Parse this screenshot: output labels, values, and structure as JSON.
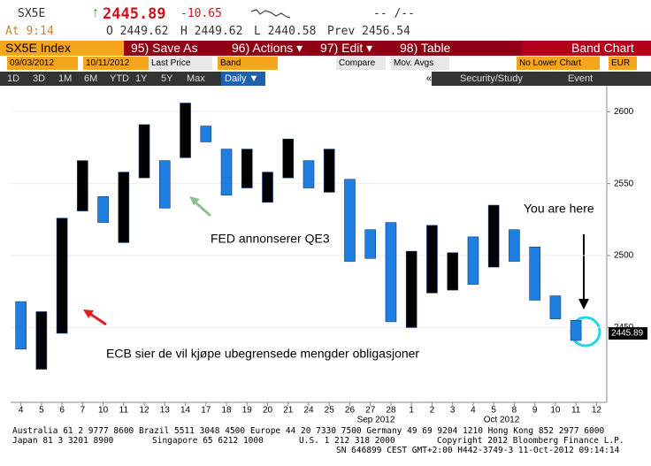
{
  "header": {
    "ticker": "SX5E",
    "last": "2445.89",
    "change": "-10.65",
    "time_pair": "-- /--",
    "at": "At 9:14",
    "open": "O 2449.62",
    "high": "H 2449.62",
    "low": "L 2440.58",
    "prev": "Prev 2456.54"
  },
  "menu": {
    "security": "SX5E Index",
    "save": "95) Save As",
    "actions": "96) Actions ▾",
    "edit": "97) Edit ▾",
    "table": "98) Table",
    "view": "Band Chart"
  },
  "settings": {
    "start": "09/03/2012",
    "end": "10/11/2012",
    "field": "Last Price",
    "style": "Band",
    "compare": "Compare",
    "averages": "Mov. Avgs",
    "lower": "No Lower Chart",
    "currency": "EUR"
  },
  "toolbar": {
    "periods": [
      "1D",
      "3D",
      "1M",
      "6M",
      "YTD",
      "1Y",
      "5Y",
      "Max"
    ],
    "frequency": "Daily ▼",
    "collapse": "«",
    "study": "Security/Study",
    "event": "Event"
  },
  "footer": {
    "line1": "Australia 61 2 9777 8600 Brazil 5511 3048 4500 Europe 44 20 7330 7500 Germany 49 69 9204 1210 Hong Kong 852 2977 6000",
    "japan": "Japan 81 3 3201 8900",
    "singapore": "Singapore 65 6212 1000",
    "us": "U.S. 1 212 318 2000",
    "copyright": "Copyright 2012 Bloomberg Finance L.P.",
    "line3": "SN 646899 CEST  GMT+2:00 H442-3749-3 11-Oct-2012 09:14:14"
  },
  "chart_data": {
    "type": "band",
    "categories": [
      "4",
      "5",
      "6",
      "7",
      "10",
      "11",
      "12",
      "13",
      "14",
      "17",
      "18",
      "19",
      "20",
      "21",
      "24",
      "25",
      "26",
      "27",
      "28",
      "1",
      "2",
      "3",
      "4",
      "5",
      "8",
      "9",
      "10",
      "11",
      "12"
    ],
    "high": [
      2468,
      2461,
      2526,
      2566,
      2541,
      2558,
      2591,
      2566,
      2606,
      2590,
      2574,
      2574,
      2558,
      2581,
      2566,
      2574,
      2553,
      2518,
      2523,
      2503,
      2521,
      2502,
      2513,
      2535,
      2518,
      2506,
      2472,
      2455,
      null
    ],
    "low": [
      2435,
      2421,
      2446,
      2531,
      2523,
      2509,
      2554,
      2533,
      2568,
      2579,
      2542,
      2547,
      2537,
      2554,
      2547,
      2544,
      2496,
      2498,
      2454,
      2450,
      2474,
      2476,
      2480,
      2492,
      2496,
      2469,
      2456,
      2441,
      null
    ],
    "colors": [
      "#1e7fe0",
      "#000000",
      "#000000",
      "#000000",
      "#1e7fe0",
      "#000000",
      "#000000",
      "#1e7fe0",
      "#000000",
      "#1e7fe0",
      "#1e7fe0",
      "#000000",
      "#000000",
      "#000000",
      "#1e7fe0",
      "#000000",
      "#1e7fe0",
      "#1e7fe0",
      "#1e7fe0",
      "#000000",
      "#000000",
      "#000000",
      "#1e7fe0",
      "#000000",
      "#1e7fe0",
      "#1e7fe0",
      "#1e7fe0",
      "#1e7fe0",
      null
    ],
    "ylim": [
      2398,
      2618
    ],
    "yticks": [
      2450,
      2500,
      2550,
      2600
    ],
    "last_price": 2445.89,
    "periods": [
      "Sep 2012",
      "Oct 2012"
    ],
    "annotations": [
      "You are here",
      "FED annonserer QE3",
      "ECB sier de vil kjøpe ubegrensede mengder obligasjoner"
    ]
  }
}
